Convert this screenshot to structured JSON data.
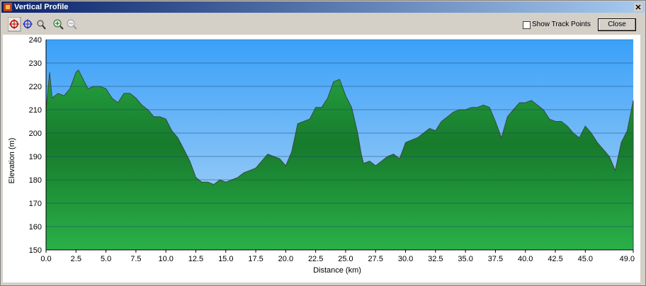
{
  "window": {
    "title": "Vertical Profile",
    "checkbox_label": "Show Track Points",
    "close_button": "Close"
  },
  "chart_data": {
    "type": "area",
    "xlabel": "Distance (km)",
    "ylabel": "Elevation (m)",
    "x": [
      0.0,
      0.3,
      0.5,
      1.0,
      1.5,
      2.0,
      2.5,
      2.7,
      3.0,
      3.5,
      4.0,
      4.5,
      5.0,
      5.5,
      6.0,
      6.5,
      7.0,
      7.5,
      8.0,
      8.5,
      9.0,
      9.5,
      10.0,
      10.5,
      11.0,
      11.5,
      12.0,
      12.5,
      13.0,
      13.5,
      14.0,
      14.5,
      15.0,
      15.5,
      16.0,
      16.5,
      17.0,
      17.5,
      18.0,
      18.5,
      19.0,
      19.5,
      20.0,
      20.5,
      21.0,
      21.5,
      22.0,
      22.5,
      23.0,
      23.5,
      24.0,
      24.5,
      25.0,
      25.5,
      26.0,
      26.3,
      26.5,
      27.0,
      27.5,
      28.0,
      28.5,
      29.0,
      29.5,
      30.0,
      30.5,
      31.0,
      31.5,
      32.0,
      32.5,
      33.0,
      33.5,
      34.0,
      34.5,
      35.0,
      35.5,
      36.0,
      36.5,
      37.0,
      37.5,
      38.0,
      38.5,
      39.0,
      39.5,
      40.0,
      40.5,
      41.0,
      41.5,
      42.0,
      42.5,
      43.0,
      43.5,
      44.0,
      44.5,
      45.0,
      45.5,
      46.0,
      46.5,
      47.0,
      47.5,
      48.0,
      48.5,
      49.0
    ],
    "values": [
      210,
      226,
      215,
      217,
      216,
      219,
      226,
      227,
      224,
      219,
      220,
      220,
      219,
      215,
      213,
      217,
      217,
      215,
      212,
      210,
      207,
      207,
      206,
      201,
      198,
      193,
      188,
      181,
      179,
      179,
      178,
      180,
      179,
      180,
      181,
      183,
      184,
      185,
      188,
      191,
      190,
      189,
      186,
      192,
      204,
      205,
      206,
      211,
      211,
      215,
      222,
      223,
      216,
      211,
      200,
      191,
      187,
      188,
      186,
      188,
      190,
      191,
      189,
      196,
      197,
      198,
      200,
      202,
      201,
      205,
      207,
      209,
      210,
      210,
      211,
      211,
      212,
      211,
      205,
      198,
      207,
      210,
      213,
      213,
      214,
      212,
      210,
      206,
      205,
      205,
      203,
      200,
      198,
      203,
      200,
      196,
      193,
      190,
      184,
      196,
      201,
      214
    ],
    "color": "#1f9e3c",
    "xlim": [
      0,
      49
    ],
    "ylim": [
      150,
      240
    ],
    "xticks": [
      {
        "value": 0,
        "label": "0.0"
      },
      2.5,
      {
        "value": 5,
        "label": "5.0"
      },
      7.5,
      {
        "value": 10,
        "label": "10.0"
      },
      12.5,
      {
        "value": 15,
        "label": "15.0"
      },
      17.5,
      {
        "value": 20,
        "label": "20.0"
      },
      22.5,
      {
        "value": 25,
        "label": "25.0"
      },
      27.5,
      {
        "value": 30,
        "label": "30.0"
      },
      32.5,
      {
        "value": 35,
        "label": "35.0"
      },
      37.5,
      {
        "value": 40,
        "label": "40.0"
      },
      42.5,
      {
        "value": 45,
        "label": "45.0"
      },
      {
        "value": 49,
        "label": "49.0"
      }
    ],
    "yticks": [
      150,
      160,
      170,
      180,
      190,
      200,
      210,
      220,
      230,
      240
    ],
    "grid": true
  }
}
